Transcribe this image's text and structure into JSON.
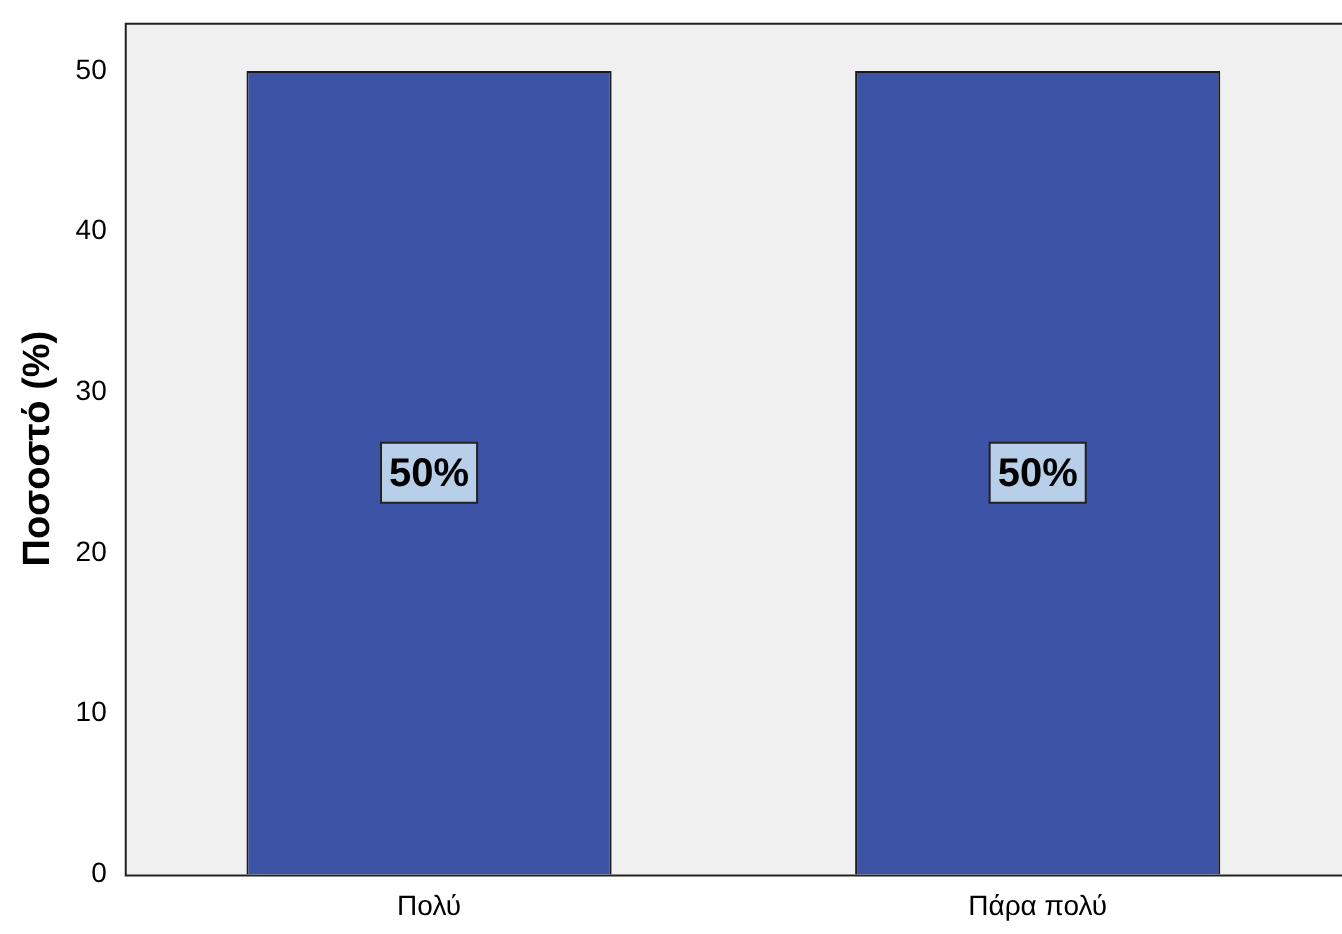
{
  "chart_data": {
    "type": "bar",
    "ylabel": "Ποσοστό (%)",
    "categories": [
      "Πολύ",
      "Πάρα πολύ"
    ],
    "values": [
      50,
      50
    ],
    "color": "#3d53a5",
    "value_labels": [
      "50%",
      "50%"
    ],
    "ylim": [
      0,
      53
    ],
    "yticks": [
      0,
      10,
      20,
      30,
      40,
      50
    ],
    "grid": false,
    "legend": false
  }
}
